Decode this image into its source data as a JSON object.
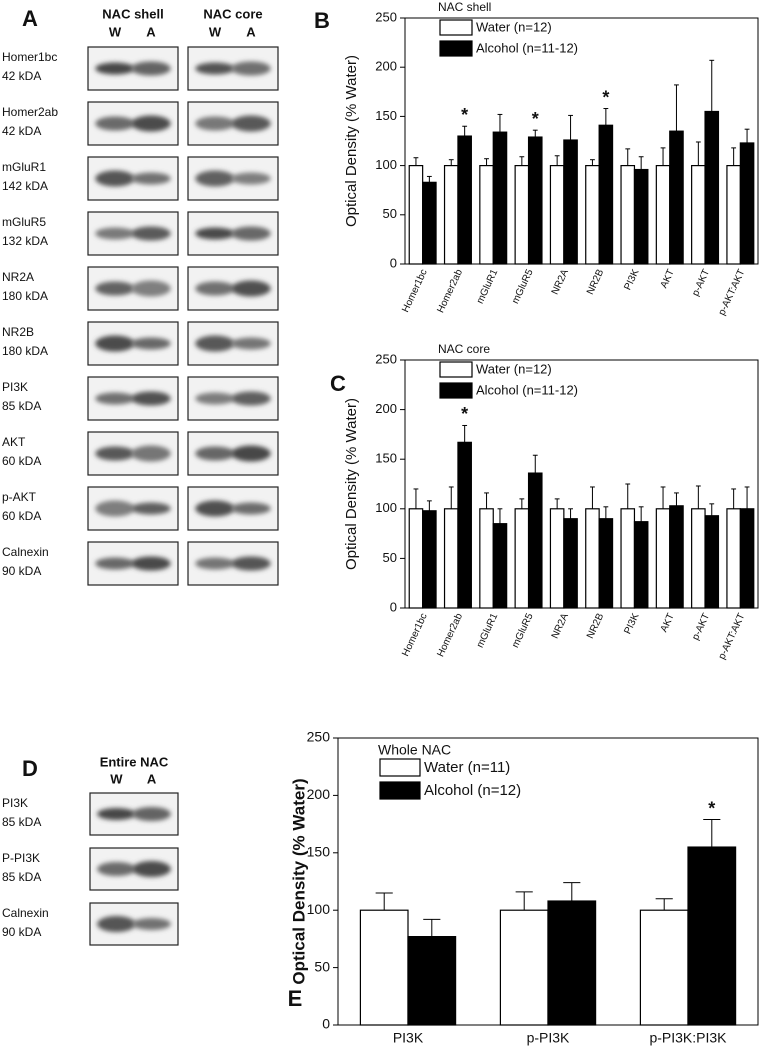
{
  "blots": [
    {
      "panel": "A",
      "regions": [
        {
          "name": "NAC shell",
          "lanes": [
            "W",
            "A"
          ]
        },
        {
          "name": "NAC core",
          "lanes": [
            "W",
            "A"
          ]
        }
      ],
      "rows": [
        {
          "name": "Homer1bc",
          "size": "42 kDA"
        },
        {
          "name": "Homer2ab",
          "size": "42 kDA"
        },
        {
          "name": "mGluR1",
          "size": "142 kDA"
        },
        {
          "name": "mGluR5",
          "size": "132 kDA"
        },
        {
          "name": "NR2A",
          "size": "180 kDA"
        },
        {
          "name": "NR2B",
          "size": "180 kDA"
        },
        {
          "name": "PI3K",
          "size": "85 kDA"
        },
        {
          "name": "AKT",
          "size": "60 kDA"
        },
        {
          "name": "p-AKT",
          "size": "60 kDA"
        },
        {
          "name": "Calnexin",
          "size": "90 kDA"
        }
      ]
    },
    {
      "panel": "D",
      "regions": [
        {
          "name": "Entire NAC",
          "lanes": [
            "W",
            "A"
          ]
        }
      ],
      "rows": [
        {
          "name": "PI3K",
          "size": "85 kDA"
        },
        {
          "name": "P-PI3K",
          "size": "85 kDA"
        },
        {
          "name": "Calnexin",
          "size": "90 kDA"
        }
      ]
    }
  ],
  "chart_data": [
    {
      "type": "bar",
      "panel": "B",
      "legend_title": "NAC shell",
      "y_label": "Optical Density (% Water)",
      "categories": [
        "Homer1bc",
        "Homer2ab",
        "mGluR1",
        "mGluR5",
        "NR2A",
        "NR2B",
        "PI3K",
        "AKT",
        "p-AKT",
        "p-AKT:AKT"
      ],
      "series": [
        {
          "name": "Water (n=12)",
          "color": "#ffffff",
          "values": [
            100,
            100,
            100,
            100,
            100,
            100,
            100,
            100,
            100,
            100
          ],
          "errors": [
            8,
            6,
            7,
            9,
            10,
            6,
            17,
            18,
            24,
            18
          ]
        },
        {
          "name": "Alcohol (n=11-12)",
          "color": "#000000",
          "values": [
            83,
            130,
            134,
            129,
            126,
            141,
            96,
            135,
            155,
            123
          ],
          "errors": [
            6,
            10,
            18,
            7,
            25,
            17,
            13,
            47,
            52,
            14
          ],
          "significance": [
            null,
            "*",
            null,
            "*",
            null,
            "*",
            null,
            null,
            null,
            null
          ]
        }
      ],
      "ylim": [
        0,
        250
      ],
      "yticks": [
        0,
        50,
        100,
        150,
        200,
        250
      ]
    },
    {
      "type": "bar",
      "panel": "C",
      "legend_title": "NAC core",
      "y_label": "Optical Density (% Water)",
      "categories": [
        "Homer1bc",
        "Homer2ab",
        "mGluR1",
        "mGluR5",
        "NR2A",
        "NR2B",
        "PI3K",
        "AKT",
        "p-AKT",
        "p-AKT:AKT"
      ],
      "series": [
        {
          "name": "Water (n=12)",
          "color": "#ffffff",
          "values": [
            100,
            100,
            100,
            100,
            100,
            100,
            100,
            100,
            100,
            100
          ],
          "errors": [
            20,
            22,
            16,
            10,
            10,
            22,
            25,
            22,
            23,
            20
          ]
        },
        {
          "name": "Alcohol (n=11-12)",
          "color": "#000000",
          "values": [
            98,
            167,
            85,
            136,
            90,
            90,
            87,
            103,
            93,
            100
          ],
          "errors": [
            10,
            17,
            15,
            18,
            10,
            12,
            15,
            13,
            12,
            22
          ],
          "significance": [
            null,
            "*",
            null,
            null,
            null,
            null,
            null,
            null,
            null,
            null
          ]
        }
      ],
      "ylim": [
        0,
        250
      ],
      "yticks": [
        0,
        50,
        100,
        150,
        200,
        250
      ]
    },
    {
      "type": "bar",
      "panel": "E",
      "legend_title": "Whole NAC",
      "y_label": "Optical Density (% Water)",
      "categories": [
        "PI3K",
        "p-PI3K",
        "p-PI3K:PI3K"
      ],
      "series": [
        {
          "name": "Water (n=11)",
          "color": "#ffffff",
          "values": [
            100,
            100,
            100
          ],
          "errors": [
            15,
            16,
            10
          ]
        },
        {
          "name": "Alcohol (n=12)",
          "color": "#000000",
          "values": [
            77,
            108,
            155
          ],
          "errors": [
            15,
            16,
            24
          ],
          "significance": [
            null,
            null,
            "*"
          ]
        }
      ],
      "ylim": [
        0,
        250
      ],
      "yticks": [
        0,
        50,
        100,
        150,
        200,
        250
      ]
    }
  ]
}
